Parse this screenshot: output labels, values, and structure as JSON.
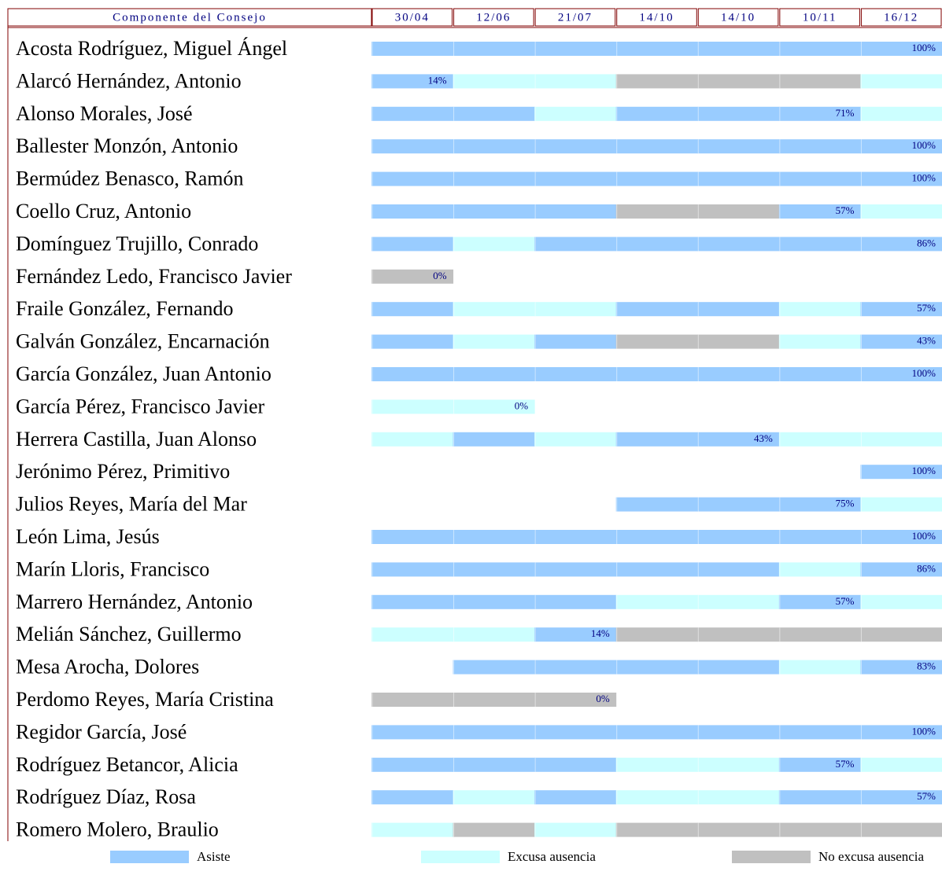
{
  "header": {
    "title": "Componente del Consejo",
    "dates": [
      "30/04",
      "12/06",
      "21/07",
      "14/10",
      "14/10",
      "10/11",
      "16/12"
    ]
  },
  "legend": [
    {
      "label": "Asiste",
      "color": "#99ccff"
    },
    {
      "label": "Excusa ausencia",
      "color": "#ccffff"
    },
    {
      "label": "No excusa ausencia",
      "color": "#c0c0c0"
    }
  ],
  "rows": [
    {
      "name": "Acosta Rodríguez, Miguel Ángel",
      "cells": [
        0,
        0,
        0,
        0,
        0,
        0,
        0
      ],
      "label": "100%"
    },
    {
      "name": "Alarcó Hernández, Antonio",
      "cells": [
        0,
        1,
        1,
        2,
        2,
        2,
        1
      ],
      "label": "14%"
    },
    {
      "name": "Alonso Morales, José",
      "cells": [
        0,
        0,
        1,
        0,
        0,
        0,
        1
      ],
      "label": "71%"
    },
    {
      "name": "Ballester Monzón, Antonio",
      "cells": [
        0,
        0,
        0,
        0,
        0,
        0,
        0
      ],
      "label": "100%"
    },
    {
      "name": "Bermúdez Benasco, Ramón",
      "cells": [
        0,
        0,
        0,
        0,
        0,
        0,
        0
      ],
      "label": "100%"
    },
    {
      "name": "Coello Cruz, Antonio",
      "cells": [
        0,
        0,
        0,
        2,
        2,
        0,
        1
      ],
      "label": "57%"
    },
    {
      "name": "Domínguez Trujillo, Conrado",
      "cells": [
        0,
        1,
        0,
        0,
        0,
        0,
        0
      ],
      "label": "86%"
    },
    {
      "name": "Fernández Ledo, Francisco Javier",
      "cells": [
        2,
        null,
        null,
        null,
        null,
        null,
        null
      ],
      "label": "0%"
    },
    {
      "name": "Fraile González, Fernando",
      "cells": [
        0,
        1,
        1,
        0,
        0,
        1,
        0
      ],
      "label": "57%"
    },
    {
      "name": "Galván González, Encarnación",
      "cells": [
        0,
        1,
        0,
        2,
        2,
        1,
        0
      ],
      "label": "43%"
    },
    {
      "name": "García González, Juan Antonio",
      "cells": [
        0,
        0,
        0,
        0,
        0,
        0,
        0
      ],
      "label": "100%"
    },
    {
      "name": "García Pérez, Francisco Javier",
      "cells": [
        1,
        1,
        null,
        null,
        null,
        null,
        null
      ],
      "label": "0%"
    },
    {
      "name": "Herrera Castilla, Juan Alonso",
      "cells": [
        1,
        0,
        1,
        0,
        0,
        1,
        1
      ],
      "label": "43%"
    },
    {
      "name": "Jerónimo Pérez, Primitivo",
      "cells": [
        null,
        null,
        null,
        null,
        null,
        null,
        0
      ],
      "label": "100%"
    },
    {
      "name": "Julios Reyes, María del Mar",
      "cells": [
        null,
        null,
        null,
        0,
        0,
        0,
        1
      ],
      "label": "75%"
    },
    {
      "name": "León Lima, Jesús",
      "cells": [
        0,
        0,
        0,
        0,
        0,
        0,
        0
      ],
      "label": "100%"
    },
    {
      "name": "Marín Lloris, Francisco",
      "cells": [
        0,
        0,
        0,
        0,
        0,
        1,
        0
      ],
      "label": "86%"
    },
    {
      "name": "Marrero Hernández, Antonio",
      "cells": [
        0,
        0,
        0,
        1,
        1,
        0,
        1
      ],
      "label": "57%"
    },
    {
      "name": "Melián Sánchez, Guillermo",
      "cells": [
        1,
        1,
        0,
        2,
        2,
        2,
        2
      ],
      "label": "14%"
    },
    {
      "name": "Mesa Arocha, Dolores",
      "cells": [
        null,
        0,
        0,
        0,
        0,
        1,
        0
      ],
      "label": "83%"
    },
    {
      "name": "Perdomo Reyes, María Cristina",
      "cells": [
        2,
        2,
        2,
        null,
        null,
        null,
        null
      ],
      "label": "0%",
      "label_color": "#ffffff"
    },
    {
      "name": "Regidor García, José",
      "cells": [
        0,
        0,
        0,
        0,
        0,
        0,
        0
      ],
      "label": "100%"
    },
    {
      "name": "Rodríguez Betancor, Alicia",
      "cells": [
        0,
        0,
        0,
        1,
        1,
        0,
        1
      ],
      "label": "57%"
    },
    {
      "name": "Rodríguez Díaz, Rosa",
      "cells": [
        0,
        1,
        0,
        1,
        1,
        0,
        0
      ],
      "label": "57%"
    },
    {
      "name": "Romero Molero, Braulio",
      "cells": [
        1,
        2,
        1,
        2,
        2,
        2,
        2
      ]
    }
  ]
}
